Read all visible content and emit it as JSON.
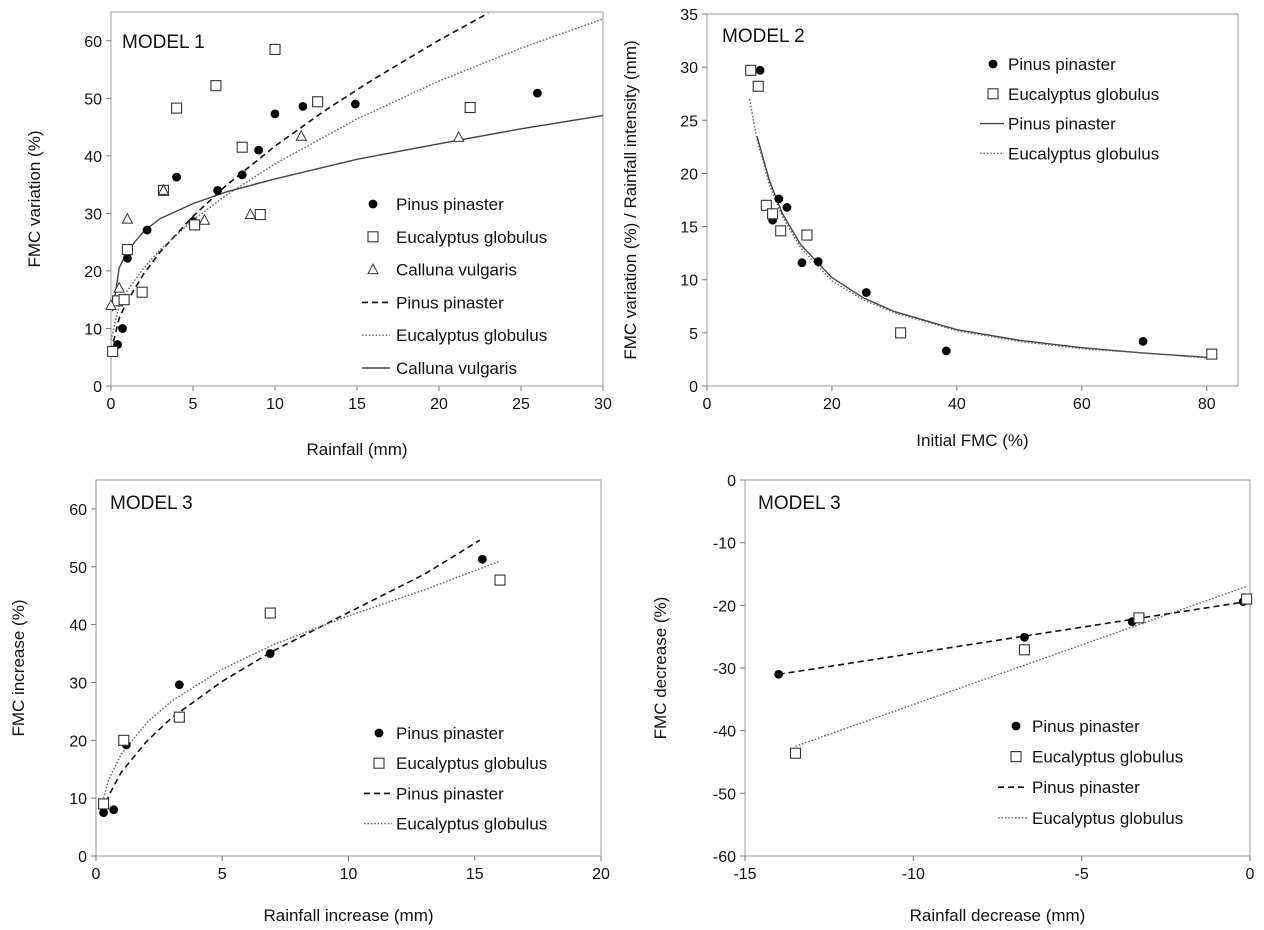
{
  "chart_data": [
    {
      "type": "scatter",
      "title": "MODEL 1",
      "xlabel": "Rainfall (mm)",
      "ylabel": "FMC variation (%)",
      "xlim": [
        0,
        30
      ],
      "ylim": [
        0,
        65
      ],
      "xticks": [
        0,
        5,
        10,
        15,
        20,
        25,
        30
      ],
      "yticks": [
        0,
        10,
        20,
        30,
        40,
        50,
        60
      ],
      "grid": false,
      "legend_position": "bottom-right",
      "series": [
        {
          "name": "Pinus pinaster",
          "kind": "points",
          "marker": "filled-circle",
          "points": [
            [
              0.1,
              6
            ],
            [
              0.4,
              7.2
            ],
            [
              0.7,
              10
            ],
            [
              1,
              22.2
            ],
            [
              2.2,
              27.1
            ],
            [
              4,
              36.3
            ],
            [
              5,
              28.6
            ],
            [
              6.5,
              34
            ],
            [
              8,
              36.7
            ],
            [
              9,
              41
            ],
            [
              10,
              47.3
            ],
            [
              11.7,
              48.6
            ],
            [
              14.9,
              49
            ],
            [
              26,
              50.9
            ]
          ]
        },
        {
          "name": "Eucalyptus globulus",
          "kind": "points",
          "marker": "open-square",
          "points": [
            [
              0.1,
              6
            ],
            [
              0.4,
              14.8
            ],
            [
              0.8,
              15
            ],
            [
              1,
              23.7
            ],
            [
              1.9,
              16.3
            ],
            [
              3.2,
              34
            ],
            [
              4,
              48.3
            ],
            [
              5.1,
              28
            ],
            [
              6.4,
              52.2
            ],
            [
              8,
              41.5
            ],
            [
              9.1,
              29.8
            ],
            [
              10,
              58.5
            ],
            [
              12.6,
              49.4
            ],
            [
              21.9,
              48.4
            ]
          ]
        },
        {
          "name": "Calluna vulgaris",
          "kind": "points",
          "marker": "open-triangle",
          "points": [
            [
              0,
              14
            ],
            [
              0.5,
              17
            ],
            [
              1,
              29
            ],
            [
              3.2,
              34
            ],
            [
              5.7,
              28.8
            ],
            [
              8.5,
              29.8
            ],
            [
              11.6,
              43.4
            ],
            [
              21.2,
              43.2
            ]
          ]
        },
        {
          "name": "Pinus pinaster",
          "kind": "line",
          "style": "dashed",
          "points": [
            [
              0,
              6
            ],
            [
              0.5,
              11.8
            ],
            [
              1,
              14.8
            ],
            [
              2,
              19.5
            ],
            [
              3,
              23.3
            ],
            [
              5,
              29.5
            ],
            [
              7,
              34.8
            ],
            [
              10,
              41.7
            ],
            [
              13,
              47.8
            ],
            [
              16,
              53.3
            ],
            [
              20,
              60.1
            ],
            [
              23,
              64.8
            ]
          ]
        },
        {
          "name": "Eucalyptus globulus",
          "kind": "line",
          "style": "dotted",
          "points": [
            [
              0,
              8
            ],
            [
              0.5,
              14
            ],
            [
              1,
              16.6
            ],
            [
              2,
              20.5
            ],
            [
              3,
              23.7
            ],
            [
              5,
              28.8
            ],
            [
              7,
              33.1
            ],
            [
              10,
              38.6
            ],
            [
              15,
              46.4
            ],
            [
              20,
              53
            ],
            [
              25,
              58.7
            ],
            [
              30,
              63.8
            ]
          ]
        },
        {
          "name": "Calluna vulgaris",
          "kind": "line",
          "style": "solid",
          "points": [
            [
              0.1,
              13
            ],
            [
              0.5,
              20.5
            ],
            [
              1,
              23.5
            ],
            [
              2,
              26.9
            ],
            [
              3,
              29.1
            ],
            [
              5,
              31.7
            ],
            [
              7,
              33.7
            ],
            [
              10,
              36
            ],
            [
              15,
              39.4
            ],
            [
              20,
              42.1
            ],
            [
              25,
              44.7
            ],
            [
              30,
              47
            ]
          ]
        }
      ]
    },
    {
      "type": "scatter",
      "title": "MODEL 2",
      "xlabel": "Initial FMC (%)",
      "ylabel": "FMC variation (%) / Rainfall intensity (mm)",
      "xlim": [
        0,
        85
      ],
      "ylim": [
        0,
        35
      ],
      "xticks": [
        0,
        20,
        40,
        60,
        80
      ],
      "yticks": [
        0,
        5,
        10,
        15,
        20,
        25,
        30,
        35
      ],
      "grid": false,
      "legend_position": "top-right",
      "series": [
        {
          "name": "Pinus pinaster",
          "kind": "points",
          "marker": "filled-circle",
          "points": [
            [
              8.5,
              29.7
            ],
            [
              10.5,
              15.6
            ],
            [
              11.5,
              17.6
            ],
            [
              12.8,
              16.8
            ],
            [
              15.2,
              11.6
            ],
            [
              17.8,
              11.7
            ],
            [
              25.5,
              8.8
            ],
            [
              38.3,
              3.3
            ],
            [
              69.8,
              4.2
            ]
          ]
        },
        {
          "name": "Eucalyptus globulus",
          "kind": "points",
          "marker": "open-square",
          "points": [
            [
              7,
              29.7
            ],
            [
              8.2,
              28.2
            ],
            [
              9.5,
              17
            ],
            [
              10.5,
              16.2
            ],
            [
              11.8,
              14.6
            ],
            [
              16,
              14.2
            ],
            [
              31,
              5
            ],
            [
              80.8,
              3
            ]
          ]
        },
        {
          "name": "Pinus pinaster",
          "kind": "line",
          "style": "solid",
          "points": [
            [
              8,
              23.5
            ],
            [
              10,
              19.3
            ],
            [
              12,
              16.3
            ],
            [
              15,
              13.3
            ],
            [
              20,
              10.2
            ],
            [
              25,
              8.3
            ],
            [
              30,
              7
            ],
            [
              40,
              5.3
            ],
            [
              50,
              4.3
            ],
            [
              60,
              3.6
            ],
            [
              70,
              3.1
            ],
            [
              80,
              2.7
            ]
          ]
        },
        {
          "name": "Eucalyptus globulus",
          "kind": "line",
          "style": "dotted",
          "points": [
            [
              6.8,
              27
            ],
            [
              8,
              23.2
            ],
            [
              10,
              18.9
            ],
            [
              12,
              16
            ],
            [
              15,
              13
            ],
            [
              20,
              9.9
            ],
            [
              25,
              8.1
            ],
            [
              30,
              6.9
            ],
            [
              40,
              5.2
            ],
            [
              50,
              4.2
            ],
            [
              60,
              3.5
            ],
            [
              70,
              3.1
            ],
            [
              81,
              2.6
            ]
          ]
        }
      ]
    },
    {
      "type": "scatter",
      "title": "MODEL 3",
      "xlabel": "Rainfall increase (mm)",
      "ylabel": "FMC increase (%)",
      "xlim": [
        0,
        20
      ],
      "ylim": [
        0,
        65
      ],
      "xticks": [
        0,
        5,
        10,
        15,
        20
      ],
      "yticks": [
        0,
        10,
        20,
        30,
        40,
        50,
        60
      ],
      "grid": false,
      "legend_position": "bottom-right",
      "series": [
        {
          "name": "Pinus pinaster",
          "kind": "points",
          "marker": "filled-circle",
          "points": [
            [
              0.3,
              7.5
            ],
            [
              0.7,
              8
            ],
            [
              1.2,
              19.2
            ],
            [
              3.3,
              29.6
            ],
            [
              6.9,
              35
            ],
            [
              15.3,
              51.3
            ]
          ]
        },
        {
          "name": "Eucalyptus globulus",
          "kind": "points",
          "marker": "open-square",
          "points": [
            [
              0.3,
              9
            ],
            [
              1.1,
              20
            ],
            [
              3.3,
              24
            ],
            [
              6.9,
              42
            ],
            [
              16,
              47.7
            ]
          ]
        },
        {
          "name": "Pinus pinaster",
          "kind": "line",
          "style": "dashed",
          "points": [
            [
              0.3,
              7.6
            ],
            [
              0.5,
              10.4
            ],
            [
              1,
              14.5
            ],
            [
              2,
              19.8
            ],
            [
              3,
              23.9
            ],
            [
              5,
              30.2
            ],
            [
              7,
              35.4
            ],
            [
              10,
              42.1
            ],
            [
              13,
              48.7
            ],
            [
              15.2,
              54.6
            ]
          ]
        },
        {
          "name": "Eucalyptus globulus",
          "kind": "line",
          "style": "dotted",
          "points": [
            [
              0.3,
              10
            ],
            [
              0.5,
              13.2
            ],
            [
              1,
              17.6
            ],
            [
              2,
              23
            ],
            [
              3,
              26.8
            ],
            [
              5,
              32.3
            ],
            [
              7,
              36.5
            ],
            [
              10,
              41.5
            ],
            [
              13,
              46
            ],
            [
              16,
              51
            ]
          ]
        }
      ]
    },
    {
      "type": "scatter",
      "title": "MODEL 3",
      "xlabel": "Rainfall decrease (mm)",
      "ylabel": "FMC decrease (%)",
      "xlim": [
        -15,
        0
      ],
      "ylim": [
        -60,
        0
      ],
      "xticks": [
        -15,
        -10,
        -5,
        0
      ],
      "yticks": [
        0,
        -10,
        -20,
        -30,
        -40,
        -50,
        -60
      ],
      "grid": false,
      "legend_position": "bottom-right",
      "series": [
        {
          "name": "Pinus pinaster",
          "kind": "points",
          "marker": "filled-circle",
          "points": [
            [
              -14,
              -31
            ],
            [
              -6.7,
              -25.1
            ],
            [
              -3.5,
              -22.6
            ],
            [
              -0.2,
              -19.4
            ]
          ]
        },
        {
          "name": "Eucalyptus globulus",
          "kind": "points",
          "marker": "open-square",
          "points": [
            [
              -13.5,
              -43.6
            ],
            [
              -6.7,
              -27.1
            ],
            [
              -3.3,
              -22
            ],
            [
              -0.1,
              -19
            ]
          ]
        },
        {
          "name": "Pinus pinaster",
          "kind": "line",
          "style": "dashed",
          "points": [
            [
              -14,
              -31
            ],
            [
              -0.1,
              -19.4
            ]
          ]
        },
        {
          "name": "Eucalyptus globulus",
          "kind": "line",
          "style": "dotted",
          "points": [
            [
              -13.5,
              -42.5
            ],
            [
              -0.1,
              -17
            ]
          ]
        }
      ]
    }
  ]
}
